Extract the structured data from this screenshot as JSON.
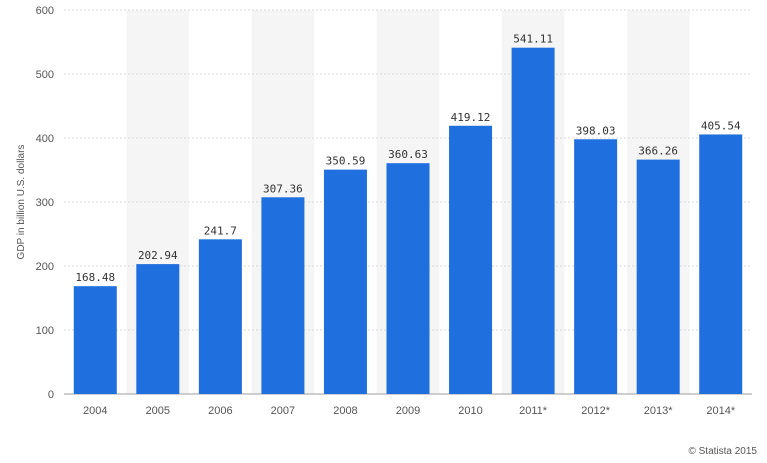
{
  "chart_data": {
    "type": "bar",
    "categories": [
      "2004",
      "2005",
      "2006",
      "2007",
      "2008",
      "2009",
      "2010",
      "2011*",
      "2012*",
      "2013*",
      "2014*"
    ],
    "values": [
      168.48,
      202.94,
      241.7,
      307.36,
      350.59,
      360.63,
      419.12,
      541.11,
      398.03,
      366.26,
      405.54
    ],
    "value_labels": [
      "168.48",
      "202.94",
      "241.7",
      "307.36",
      "350.59",
      "360.63",
      "419.12",
      "541.11",
      "398.03",
      "366.26",
      "405.54"
    ],
    "title": "",
    "xlabel": "",
    "ylabel": "GDP in billion U.S. dollars",
    "ylim": [
      0,
      600
    ],
    "yticks": [
      0,
      100,
      200,
      300,
      400,
      500,
      600
    ],
    "grid": true,
    "bar_color": "#1f6fde",
    "alt_band_color": "#f5f5f5"
  },
  "footer": {
    "credit": "© Statista 2015"
  }
}
